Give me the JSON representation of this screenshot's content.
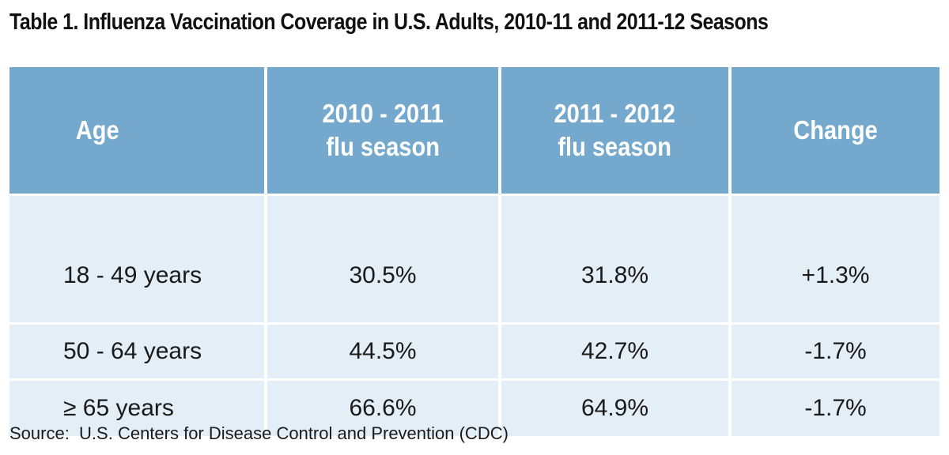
{
  "title": "Table 1. Influenza Vaccination Coverage in U.S. Adults, 2010-11 and 2011-12 Seasons",
  "colors": {
    "header_bg": "#74a9cd",
    "body_bg": "#e4eef6",
    "header_text": "#ffffff"
  },
  "table": {
    "headers": [
      {
        "line1": "Age",
        "line2": ""
      },
      {
        "line1": "2010 - 2011",
        "line2": "flu season"
      },
      {
        "line1": "2011 - 2012",
        "line2": "flu season"
      },
      {
        "line1": "Change",
        "line2": ""
      }
    ],
    "rows": [
      {
        "age": "18 - 49 years",
        "s2010": "30.5%",
        "s2011": "31.8%",
        "change": "+1.3%"
      },
      {
        "age": "50 - 64 years",
        "s2010": "44.5%",
        "s2011": "42.7%",
        "change": "-1.7%"
      },
      {
        "age": "≥ 65 years",
        "s2010": "66.6%",
        "s2011": "64.9%",
        "change": "-1.7%"
      }
    ]
  },
  "source": "Source:  U.S. Centers for Disease Control and Prevention (CDC)"
}
